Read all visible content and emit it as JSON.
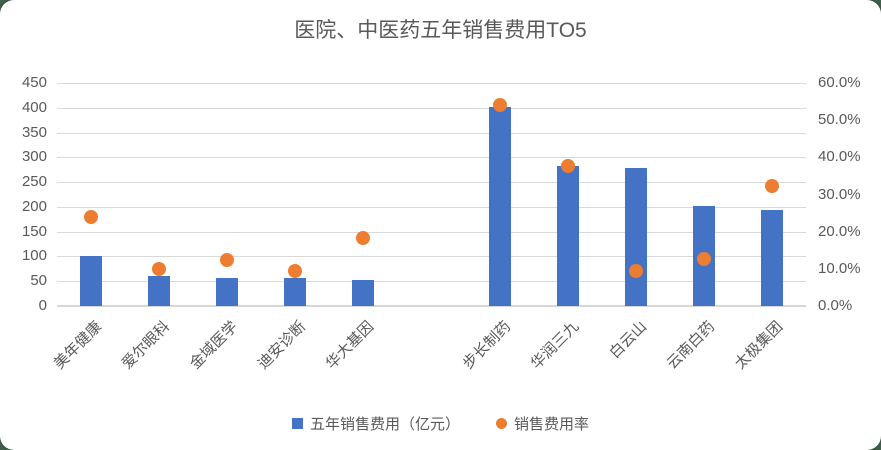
{
  "colors": {
    "bar": "#4472C4",
    "marker": "#ED7D31",
    "gridline": "#D9D9D9",
    "text": "#595959",
    "card_background": "#FFFFFF",
    "page_background": "#44644D"
  },
  "chart_data": {
    "type": "bar",
    "subtype": "combo-bar-scatter-dual-axis",
    "title": "医院、中医药五年销售费用TO5",
    "categories": [
      "美年健康",
      "爱尔眼科",
      "金域医学",
      "迪安诊断",
      "华大基因",
      "",
      "步长制药",
      "华润三九",
      "白云山",
      "云南白药",
      "太极集团"
    ],
    "series": [
      {
        "name": "五年销售费用（亿元）",
        "type": "bar",
        "axis": "left",
        "color": "#4472C4",
        "values": [
          100,
          61,
          56,
          56,
          52,
          null,
          402,
          282,
          279,
          201,
          193
        ]
      },
      {
        "name": "销售费用率",
        "type": "scatter",
        "axis": "right",
        "color": "#ED7D31",
        "values_pct": [
          23.9,
          9.9,
          12.3,
          9.3,
          18.3,
          null,
          54.0,
          37.8,
          9.3,
          12.7,
          32.2
        ]
      }
    ],
    "left_axis": {
      "min": 0,
      "max": 450,
      "step": 50,
      "ticks": [
        "450",
        "400",
        "350",
        "300",
        "250",
        "200",
        "150",
        "100",
        "50",
        "0"
      ]
    },
    "right_axis": {
      "min_pct": 0,
      "max_pct": 60,
      "step_pct": 10,
      "ticks": [
        "60.0%",
        "50.0%",
        "40.0%",
        "30.0%",
        "20.0%",
        "10.0%",
        "0.0%"
      ]
    },
    "grid": "horizontal-on",
    "legend_position": "bottom",
    "legend": [
      {
        "label": "五年销售费用（亿元）",
        "marker": "square",
        "color": "#4472C4"
      },
      {
        "label": "销售费用率",
        "marker": "circle",
        "color": "#ED7D31"
      }
    ]
  }
}
